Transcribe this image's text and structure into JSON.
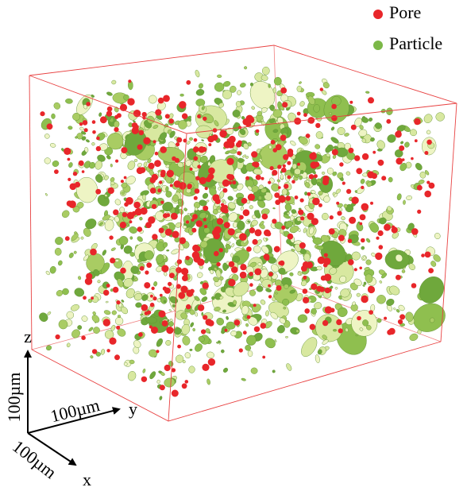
{
  "legend": {
    "items": [
      {
        "label": "Pore",
        "color": "#e8262a"
      },
      {
        "label": "Particle",
        "color": "#7cb848"
      }
    ]
  },
  "axes": {
    "z": "z",
    "y": "y",
    "x": "x",
    "z_scale": "100µm",
    "y_scale": "100µm",
    "x_scale": "100µm"
  }
}
